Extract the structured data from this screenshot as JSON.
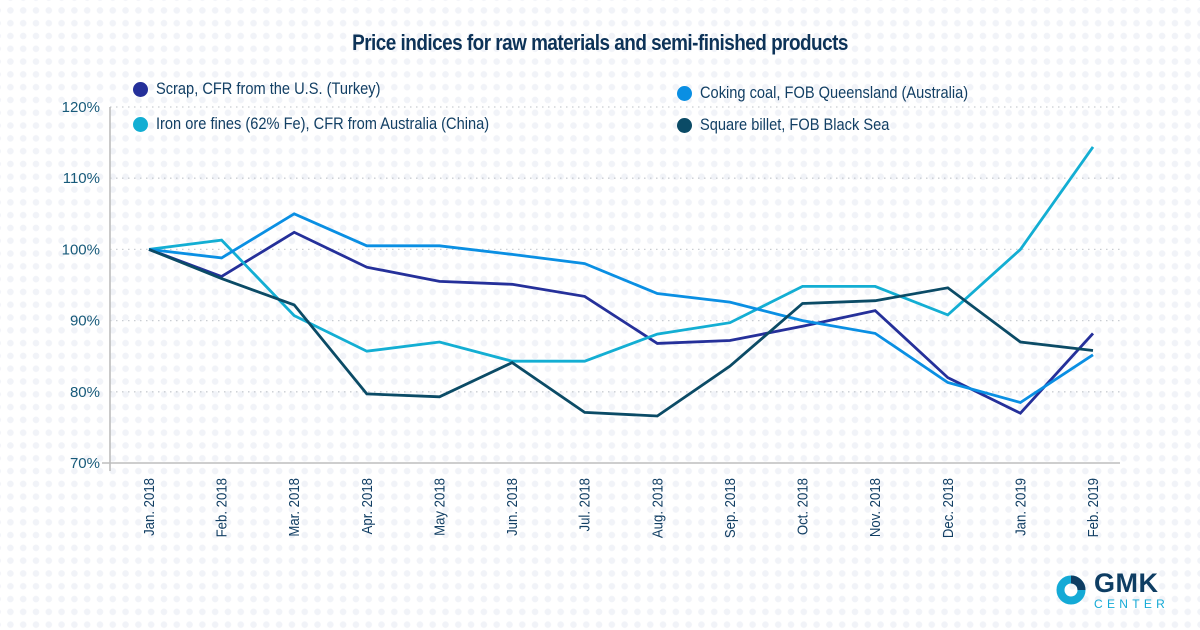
{
  "chart_data": {
    "type": "line",
    "title": "Price indices for raw materials and semi-finished products",
    "xlabel": "",
    "ylabel": "",
    "ylim": [
      70,
      120
    ],
    "yticks": [
      70,
      80,
      90,
      100,
      110,
      120
    ],
    "ytick_labels": [
      "70%",
      "80%",
      "90%",
      "100%",
      "110%",
      "120%"
    ],
    "grid": "horizontal-dotted",
    "legend_position": "top",
    "categories": [
      "Jan. 2018",
      "Feb. 2018",
      "Mar. 2018",
      "Apr. 2018",
      "May 2018",
      "Jun. 2018",
      "Jul. 2018",
      "Aug. 2018",
      "Sep. 2018",
      "Oct. 2018",
      "Nov. 2018",
      "Dec. 2018",
      "Jan. 2019",
      "Feb. 2019"
    ],
    "series": [
      {
        "name": "Scrap, CFR from the U.S. (Turkey)",
        "color": "#25309a",
        "values": [
          100,
          96.2,
          102.4,
          97.5,
          95.5,
          95.1,
          93.4,
          86.8,
          87.2,
          89.2,
          91.4,
          82.0,
          77.0,
          88.2
        ]
      },
      {
        "name": "Iron ore fines (62% Fe), CFR from Australia (China)",
        "color": "#13aed3",
        "values": [
          100,
          101.3,
          90.7,
          85.7,
          87.0,
          84.3,
          84.3,
          88.1,
          89.7,
          94.8,
          94.8,
          90.8,
          100.0,
          114.4
        ]
      },
      {
        "name": "Coking coal, FOB Queensland (Australia)",
        "color": "#0a8fe3",
        "values": [
          100,
          98.8,
          105.0,
          100.5,
          100.5,
          99.3,
          98.0,
          93.8,
          92.6,
          90.0,
          88.2,
          81.3,
          78.5,
          85.2
        ]
      },
      {
        "name": "Square billet, FOB Black Sea",
        "color": "#0b4b66",
        "values": [
          100,
          95.9,
          92.2,
          79.7,
          79.3,
          84.1,
          77.1,
          76.6,
          83.6,
          92.4,
          92.8,
          94.6,
          87.0,
          85.8
        ]
      }
    ]
  },
  "legend": [
    {
      "label": "Scrap, CFR from the U.S. (Turkey)",
      "color": "#25309a"
    },
    {
      "label": "Iron ore fines (62% Fe), CFR from Australia (China)",
      "color": "#13aed3"
    },
    {
      "label": "Coking coal, FOB Queensland (Australia)",
      "color": "#0a8fe3"
    },
    {
      "label": "Square billet, FOB Black Sea",
      "color": "#0b4b66"
    }
  ],
  "logo": {
    "primary": "GMK",
    "secondary": "CENTER",
    "colors": {
      "dark": "#0e3d63",
      "light": "#14aad6"
    }
  }
}
